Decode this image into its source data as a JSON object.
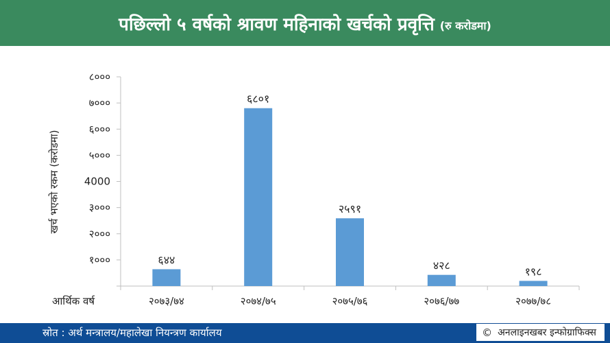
{
  "header": {
    "title": "पछिल्लो ५ वर्षको श्रावण महिनाको खर्चको प्रवृत्ति",
    "unit": "(रु करोडमा)"
  },
  "footer": {
    "source": "स्रोत : अर्थ मन्त्रालय/महालेखा नियन्त्रण कार्यालय",
    "credit": "अनलाइनखबर इन्फोग्राफिक्स",
    "credit_icon": "copyright-icon"
  },
  "colors": {
    "header_bg": "#3a8a5e",
    "footer_bg": "#0f4d95",
    "bar": "#5b9bd5"
  },
  "chart_data": {
    "type": "bar",
    "title": "",
    "xlabel": "आर्थिक वर्ष",
    "ylabel": "खर्च भएको रकम (करोडमा)",
    "categories": [
      "२०७३/७४",
      "२०७४/७५",
      "२०७५/७६",
      "२०७६/७७",
      "२०७७/७८"
    ],
    "values": [
      644,
      6801,
      2591,
      428,
      198
    ],
    "value_labels": [
      "६४४",
      "६८०१",
      "२५९१",
      "४२८",
      "१९८"
    ],
    "ylim": [
      0,
      8000
    ],
    "yticks": [
      0,
      1000,
      2000,
      3000,
      4000,
      5000,
      6000,
      7000,
      8000
    ],
    "ytick_labels": [
      "",
      "१०००",
      "२०००",
      "३०००",
      "4000",
      "५०००",
      "६०००",
      "७०००",
      "८०००"
    ],
    "grid": false,
    "legend": "none"
  }
}
